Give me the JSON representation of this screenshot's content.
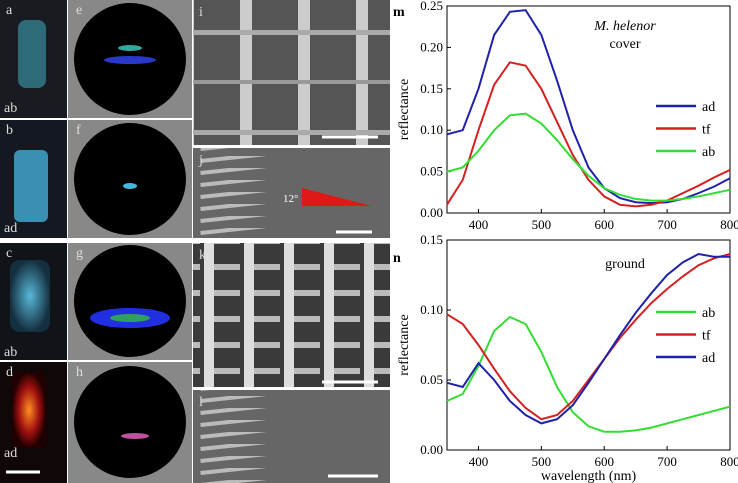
{
  "panels": {
    "letters": [
      "a",
      "b",
      "c",
      "d",
      "e",
      "f",
      "g",
      "h",
      "i",
      "j",
      "k",
      "l"
    ],
    "captions": [
      "ab",
      "ad",
      "ab",
      "ad"
    ],
    "angle": "12°"
  },
  "chart_data": [
    {
      "type": "line",
      "panel_label": "m",
      "title": "M. helenor",
      "subtitle": "cover",
      "ylabel": "reflectance",
      "x": [
        350,
        375,
        400,
        425,
        450,
        475,
        500,
        525,
        550,
        575,
        600,
        625,
        650,
        675,
        700,
        725,
        750,
        775,
        800
      ],
      "xlim": [
        350,
        800
      ],
      "xticks": [
        400,
        500,
        600,
        700,
        800
      ],
      "ylim": [
        0,
        0.25
      ],
      "yticks": [
        {
          "value": 0,
          "label": "0.00"
        },
        {
          "value": 0.05,
          "label": "0.05"
        },
        {
          "value": 0.1,
          "label": "0.10"
        },
        {
          "value": 0.15,
          "label": "0.15"
        },
        {
          "value": 0.2,
          "label": "0.20"
        },
        {
          "value": 0.25,
          "label": "0.25"
        }
      ],
      "series": [
        {
          "name": "ad",
          "color": "#1f22a8",
          "values": [
            0.095,
            0.1,
            0.15,
            0.215,
            0.243,
            0.245,
            0.215,
            0.16,
            0.1,
            0.055,
            0.03,
            0.018,
            0.013,
            0.012,
            0.013,
            0.017,
            0.024,
            0.032,
            0.042
          ]
        },
        {
          "name": "tf",
          "color": "#d42020",
          "values": [
            0.01,
            0.04,
            0.1,
            0.155,
            0.182,
            0.178,
            0.15,
            0.11,
            0.07,
            0.04,
            0.02,
            0.01,
            0.008,
            0.01,
            0.015,
            0.024,
            0.033,
            0.043,
            0.052
          ]
        },
        {
          "name": "ab",
          "color": "#33dd33",
          "values": [
            0.05,
            0.055,
            0.075,
            0.1,
            0.118,
            0.12,
            0.108,
            0.088,
            0.065,
            0.045,
            0.03,
            0.022,
            0.017,
            0.015,
            0.015,
            0.017,
            0.02,
            0.024,
            0.028
          ]
        }
      ]
    },
    {
      "type": "line",
      "panel_label": "n",
      "subtitle": "ground",
      "ylabel": "reflectance",
      "xlabel": "wavelength (nm)",
      "x": [
        350,
        375,
        400,
        425,
        450,
        475,
        500,
        525,
        550,
        575,
        600,
        625,
        650,
        675,
        700,
        725,
        750,
        775,
        800
      ],
      "xlim": [
        350,
        800
      ],
      "xticks": [
        400,
        500,
        600,
        700,
        800
      ],
      "ylim": [
        0,
        0.15
      ],
      "yticks": [
        {
          "value": 0,
          "label": "0.00"
        },
        {
          "value": 0.05,
          "label": "0.05"
        },
        {
          "value": 0.1,
          "label": "0.10"
        },
        {
          "value": 0.15,
          "label": "0.15"
        }
      ],
      "series": [
        {
          "name": "ab",
          "color": "#33dd33",
          "values": [
            0.035,
            0.04,
            0.06,
            0.085,
            0.095,
            0.09,
            0.07,
            0.045,
            0.027,
            0.017,
            0.013,
            0.013,
            0.014,
            0.016,
            0.019,
            0.022,
            0.025,
            0.028,
            0.031
          ]
        },
        {
          "name": "tf",
          "color": "#d42020",
          "values": [
            0.097,
            0.09,
            0.075,
            0.058,
            0.042,
            0.03,
            0.022,
            0.025,
            0.035,
            0.05,
            0.065,
            0.08,
            0.093,
            0.105,
            0.115,
            0.124,
            0.132,
            0.137,
            0.14
          ]
        },
        {
          "name": "ad",
          "color": "#1f22a8",
          "values": [
            0.048,
            0.045,
            0.062,
            0.05,
            0.035,
            0.025,
            0.019,
            0.022,
            0.032,
            0.048,
            0.065,
            0.082,
            0.098,
            0.112,
            0.125,
            0.134,
            0.14,
            0.138,
            0.138
          ]
        }
      ]
    }
  ]
}
